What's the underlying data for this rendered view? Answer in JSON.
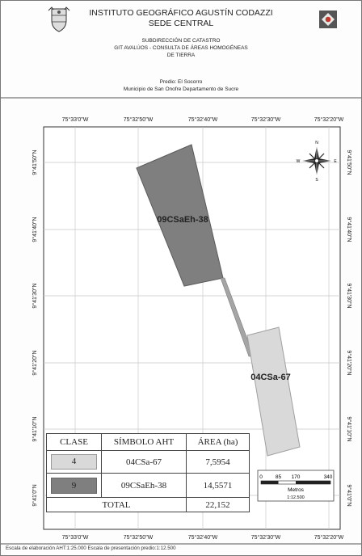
{
  "header": {
    "institute": "INSTITUTO GEOGRÁFICO AGUSTÍN CODAZZI",
    "sede": "SEDE CENTRAL",
    "subdireccion": "SUBDIRECCIÓN DE CATASTRO",
    "git": "GIT AVALÚOS - CONSULTA DE ÁREAS HOMOGÉNEAS",
    "de_tierra": "DE TIERRA",
    "predio": "Predio: El Socorro",
    "municipio": "Municipio de San Onofre Departamento de Sucre"
  },
  "map": {
    "lon_labels": [
      "75°33'0\"W",
      "75°32'50\"W",
      "75°32'40\"W",
      "75°32'30\"W",
      "75°32'20\"W"
    ],
    "lat_labels": [
      "9°41'50\"N",
      "9°41'40\"N",
      "9°41'30\"N",
      "9°41'20\"N",
      "9°41'10\"N",
      "9°41'0\"N"
    ],
    "areas": [
      {
        "label": "09CSaEh-38",
        "color": "#7f7f7f"
      },
      {
        "label": "04CSa-67",
        "color": "#d9d9d9"
      }
    ],
    "north_arrow": {
      "n": "N",
      "s": "S",
      "e": "E",
      "w": "W"
    }
  },
  "legend": {
    "headers": [
      "CLASE",
      "SÍMBOLO AHT",
      "ÁREA (ha)"
    ],
    "rows": [
      {
        "clase": "4",
        "simbolo": "04CSa-67",
        "area": "7,5954",
        "color": "#d9d9d9"
      },
      {
        "clase": "9",
        "simbolo": "09CSaEh-38",
        "area": "14,5571",
        "color": "#7f7f7f"
      }
    ],
    "total_label": "TOTAL",
    "total_value": "22,152"
  },
  "scale_bar": {
    "ticks": [
      "0",
      "85",
      "170",
      "340"
    ],
    "unit": "Metros",
    "ratio": "1:12.500"
  },
  "footer": "Escala de elaboración AHT:1:25.000  Escala de presentación predio:1:12.500"
}
